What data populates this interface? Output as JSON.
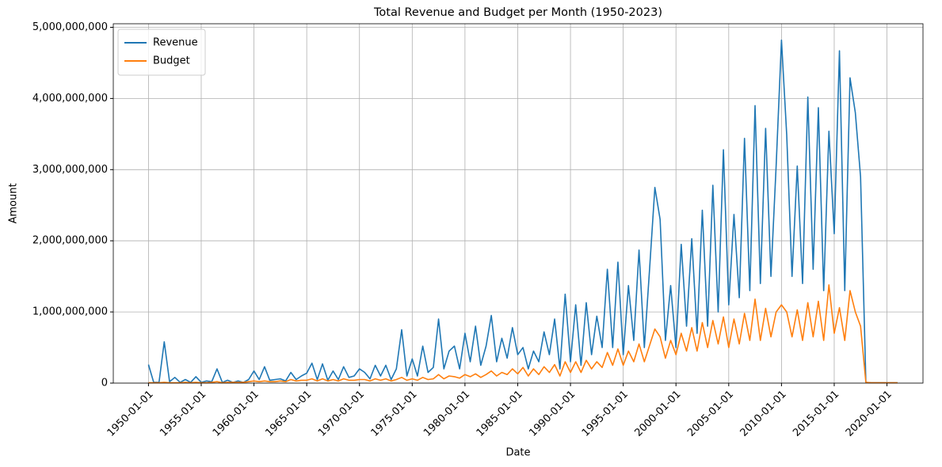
{
  "chart_data": {
    "type": "line",
    "title": "Total Revenue and Budget per Month (1950-2023)",
    "x_label": "Date",
    "y_label": "Amount",
    "x": [
      "1950-01-01",
      "1950-07-01",
      "1951-01-01",
      "1951-07-01",
      "1952-01-01",
      "1952-07-01",
      "1953-01-01",
      "1953-07-01",
      "1954-01-01",
      "1954-07-01",
      "1955-01-01",
      "1955-07-01",
      "1956-01-01",
      "1956-07-01",
      "1957-01-01",
      "1957-07-01",
      "1958-01-01",
      "1958-07-01",
      "1959-01-01",
      "1959-07-01",
      "1960-01-01",
      "1960-07-01",
      "1961-01-01",
      "1961-07-01",
      "1962-01-01",
      "1962-07-01",
      "1963-01-01",
      "1963-07-01",
      "1964-01-01",
      "1964-07-01",
      "1965-01-01",
      "1965-07-01",
      "1966-01-01",
      "1966-07-01",
      "1967-01-01",
      "1967-07-01",
      "1968-01-01",
      "1968-07-01",
      "1969-01-01",
      "1969-07-01",
      "1970-01-01",
      "1970-07-01",
      "1971-01-01",
      "1971-07-01",
      "1972-01-01",
      "1972-07-01",
      "1973-01-01",
      "1973-07-01",
      "1974-01-01",
      "1974-07-01",
      "1975-01-01",
      "1975-07-01",
      "1976-01-01",
      "1976-07-01",
      "1977-01-01",
      "1977-07-01",
      "1978-01-01",
      "1978-07-01",
      "1979-01-01",
      "1979-07-01",
      "1980-01-01",
      "1980-07-01",
      "1981-01-01",
      "1981-07-01",
      "1982-01-01",
      "1982-07-01",
      "1983-01-01",
      "1983-07-01",
      "1984-01-01",
      "1984-07-01",
      "1985-01-01",
      "1985-07-01",
      "1986-01-01",
      "1986-07-01",
      "1987-01-01",
      "1987-07-01",
      "1988-01-01",
      "1988-07-01",
      "1989-01-01",
      "1989-07-01",
      "1990-01-01",
      "1990-07-01",
      "1991-01-01",
      "1991-07-01",
      "1992-01-01",
      "1992-07-01",
      "1993-01-01",
      "1993-07-01",
      "1994-01-01",
      "1994-07-01",
      "1995-01-01",
      "1995-07-01",
      "1996-01-01",
      "1996-07-01",
      "1997-01-01",
      "1997-07-01",
      "1998-01-01",
      "1998-07-01",
      "1999-01-01",
      "1999-07-01",
      "2000-01-01",
      "2000-07-01",
      "2001-01-01",
      "2001-07-01",
      "2002-01-01",
      "2002-07-01",
      "2003-01-01",
      "2003-07-01",
      "2004-01-01",
      "2004-07-01",
      "2005-01-01",
      "2005-07-01",
      "2006-01-01",
      "2006-07-01",
      "2007-01-01",
      "2007-07-01",
      "2008-01-01",
      "2008-07-01",
      "2009-01-01",
      "2009-07-01",
      "2010-01-01",
      "2010-07-01",
      "2011-01-01",
      "2011-07-01",
      "2012-01-01",
      "2012-07-01",
      "2013-01-01",
      "2013-07-01",
      "2014-01-01",
      "2014-07-01",
      "2015-01-01",
      "2015-07-01",
      "2016-01-01",
      "2016-07-01",
      "2017-01-01",
      "2017-07-01",
      "2018-01-01",
      "2018-07-01",
      "2019-01-01",
      "2019-07-01",
      "2020-01-01",
      "2020-07-01",
      "2021-01-01"
    ],
    "series": [
      {
        "name": "Revenue",
        "color": "#1f77b4",
        "values": [
          260000000.0,
          10000000.0,
          10000000.0,
          580000000.0,
          20000000.0,
          80000000.0,
          10000000.0,
          50000000.0,
          10000000.0,
          90000000.0,
          10000000.0,
          30000000.0,
          20000000.0,
          200000000.0,
          10000000.0,
          40000000.0,
          10000000.0,
          30000000.0,
          10000000.0,
          50000000.0,
          170000000.0,
          50000000.0,
          230000000.0,
          40000000.0,
          50000000.0,
          60000000.0,
          30000000.0,
          150000000.0,
          50000000.0,
          100000000.0,
          140000000.0,
          280000000.0,
          50000000.0,
          270000000.0,
          40000000.0,
          170000000.0,
          50000000.0,
          230000000.0,
          80000000.0,
          100000000.0,
          200000000.0,
          150000000.0,
          60000000.0,
          250000000.0,
          100000000.0,
          250000000.0,
          50000000.0,
          200000000.0,
          750000000.0,
          100000000.0,
          340000000.0,
          100000000.0,
          520000000.0,
          150000000.0,
          220000000.0,
          900000000.0,
          200000000.0,
          450000000.0,
          520000000.0,
          200000000.0,
          700000000.0,
          300000000.0,
          800000000.0,
          250000000.0,
          520000000.0,
          950000000.0,
          300000000.0,
          630000000.0,
          350000000.0,
          780000000.0,
          400000000.0,
          500000000.0,
          200000000.0,
          450000000.0,
          300000000.0,
          720000000.0,
          400000000.0,
          900000000.0,
          200000000.0,
          1250000000.0,
          300000000.0,
          1100000000.0,
          250000000.0,
          1130000000.0,
          400000000.0,
          940000000.0,
          500000000.0,
          1600000000.0,
          500000000.0,
          1700000000.0,
          400000000.0,
          1370000000.0,
          600000000.0,
          1870000000.0,
          500000000.0,
          1600000000.0,
          2750000000.0,
          2300000000.0,
          600000000.0,
          1370000000.0,
          500000000.0,
          1950000000.0,
          800000000.0,
          2030000000.0,
          700000000.0,
          2430000000.0,
          800000000.0,
          2780000000.0,
          1000000000.0,
          3280000000.0,
          1100000000.0,
          2370000000.0,
          1200000000.0,
          3440000000.0,
          1300000000.0,
          3900000000.0,
          1400000000.0,
          3580000000.0,
          1500000000.0,
          3060000000.0,
          4820000000.0,
          3490000000.0,
          1500000000.0,
          3050000000.0,
          1400000000.0,
          4020000000.0,
          1600000000.0,
          3870000000.0,
          1300000000.0,
          3540000000.0,
          2100000000.0,
          4670000000.0,
          1300000000.0,
          4290000000.0,
          3800000000.0,
          2900000000.0,
          10000000.0,
          5000000.0,
          5000000.0,
          5000000.0,
          5000000.0,
          5000000.0,
          5000000.0
        ]
      },
      {
        "name": "Budget",
        "color": "#ff7f0e",
        "values": [
          5000000.0,
          5000000.0,
          5000000.0,
          10000000.0,
          5000000.0,
          5000000.0,
          5000000.0,
          10000000.0,
          5000000.0,
          10000000.0,
          5000000.0,
          5000000.0,
          10000000.0,
          20000000.0,
          5000000.0,
          10000000.0,
          10000000.0,
          10000000.0,
          10000000.0,
          20000000.0,
          30000000.0,
          20000000.0,
          30000000.0,
          20000000.0,
          20000000.0,
          30000000.0,
          20000000.0,
          50000000.0,
          30000000.0,
          40000000.0,
          40000000.0,
          60000000.0,
          30000000.0,
          60000000.0,
          30000000.0,
          50000000.0,
          30000000.0,
          60000000.0,
          40000000.0,
          40000000.0,
          50000000.0,
          50000000.0,
          30000000.0,
          60000000.0,
          40000000.0,
          60000000.0,
          30000000.0,
          50000000.0,
          80000000.0,
          40000000.0,
          60000000.0,
          40000000.0,
          80000000.0,
          50000000.0,
          60000000.0,
          120000000.0,
          60000000.0,
          100000000.0,
          90000000.0,
          70000000.0,
          120000000.0,
          90000000.0,
          130000000.0,
          80000000.0,
          120000000.0,
          170000000.0,
          100000000.0,
          150000000.0,
          120000000.0,
          200000000.0,
          130000000.0,
          220000000.0,
          100000000.0,
          200000000.0,
          120000000.0,
          230000000.0,
          150000000.0,
          260000000.0,
          100000000.0,
          300000000.0,
          150000000.0,
          300000000.0,
          150000000.0,
          320000000.0,
          200000000.0,
          300000000.0,
          220000000.0,
          430000000.0,
          250000000.0,
          480000000.0,
          250000000.0,
          450000000.0,
          300000000.0,
          550000000.0,
          300000000.0,
          530000000.0,
          760000000.0,
          650000000.0,
          350000000.0,
          600000000.0,
          400000000.0,
          700000000.0,
          450000000.0,
          780000000.0,
          450000000.0,
          850000000.0,
          500000000.0,
          880000000.0,
          550000000.0,
          930000000.0,
          500000000.0,
          900000000.0,
          550000000.0,
          980000000.0,
          600000000.0,
          1180000000.0,
          600000000.0,
          1050000000.0,
          650000000.0,
          1000000000.0,
          1100000000.0,
          1000000000.0,
          650000000.0,
          1030000000.0,
          600000000.0,
          1130000000.0,
          650000000.0,
          1150000000.0,
          600000000.0,
          1380000000.0,
          700000000.0,
          1060000000.0,
          600000000.0,
          1300000000.0,
          1000000000.0,
          800000000.0,
          10000000.0,
          5000000.0,
          5000000.0,
          5000000.0,
          5000000.0,
          5000000.0,
          5000000.0
        ]
      }
    ],
    "xlim": [
      "1946-09-01",
      "2023-06-01"
    ],
    "xticks": [
      "1950-01-01",
      "1955-01-01",
      "1960-01-01",
      "1965-01-01",
      "1970-01-01",
      "1975-01-01",
      "1980-01-01",
      "1985-01-01",
      "1990-01-01",
      "1995-01-01",
      "2000-01-01",
      "2005-01-01",
      "2010-01-01",
      "2015-01-01",
      "2020-01-01"
    ],
    "ylim": [
      0,
      5050000000
    ],
    "yticks": [
      0,
      {
        "value": 1000000000,
        "label": "1,000,000,000"
      },
      {
        "value": 2000000000,
        "label": "2,000,000,000"
      },
      {
        "value": 3000000000,
        "label": "3,000,000,000"
      },
      {
        "value": 4000000000,
        "label": "4,000,000,000"
      },
      {
        "value": 5000000000,
        "label": "5,000,000,000"
      }
    ],
    "grid": true,
    "legend": "upper left"
  }
}
